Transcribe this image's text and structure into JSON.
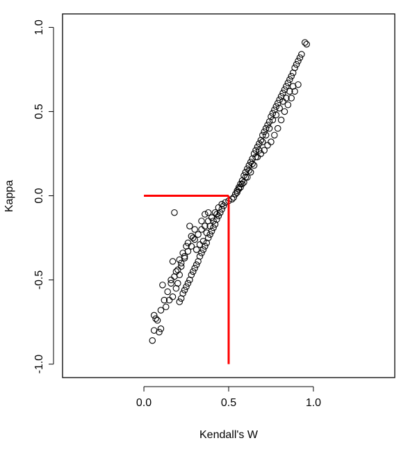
{
  "chart_data": {
    "type": "scatter",
    "title": "",
    "xlabel": "Kendall's W",
    "ylabel": "Kappa",
    "xlim": [
      -0.48,
      1.48
    ],
    "ylim": [
      -1.08,
      1.08
    ],
    "x_ticks": [
      0.0,
      0.5,
      1.0
    ],
    "x_tick_labels": [
      "0.0",
      "0.5",
      "1.0"
    ],
    "y_ticks": [
      -1.0,
      -0.5,
      0.0,
      0.5,
      1.0
    ],
    "y_tick_labels": [
      "-1.0",
      "-0.5",
      "0.0",
      "0.5",
      "1.0"
    ],
    "grid": false,
    "marker": "open-circle",
    "point_color": "#000000",
    "line_color": "#ff0000",
    "points": [
      [
        0.96,
        0.9
      ],
      [
        0.95,
        0.91
      ],
      [
        0.93,
        0.84
      ],
      [
        0.92,
        0.82
      ],
      [
        0.91,
        0.8
      ],
      [
        0.9,
        0.78
      ],
      [
        0.89,
        0.76
      ],
      [
        0.88,
        0.73
      ],
      [
        0.87,
        0.71
      ],
      [
        0.86,
        0.69
      ],
      [
        0.85,
        0.67
      ],
      [
        0.84,
        0.65
      ],
      [
        0.83,
        0.63
      ],
      [
        0.82,
        0.61
      ],
      [
        0.81,
        0.59
      ],
      [
        0.8,
        0.57
      ],
      [
        0.79,
        0.55
      ],
      [
        0.78,
        0.53
      ],
      [
        0.77,
        0.51
      ],
      [
        0.76,
        0.49
      ],
      [
        0.75,
        0.47
      ],
      [
        0.74,
        0.44
      ],
      [
        0.73,
        0.42
      ],
      [
        0.72,
        0.4
      ],
      [
        0.71,
        0.38
      ],
      [
        0.7,
        0.36
      ],
      [
        0.69,
        0.33
      ],
      [
        0.68,
        0.31
      ],
      [
        0.67,
        0.29
      ],
      [
        0.66,
        0.27
      ],
      [
        0.65,
        0.25
      ],
      [
        0.64,
        0.22
      ],
      [
        0.63,
        0.2
      ],
      [
        0.62,
        0.18
      ],
      [
        0.61,
        0.16
      ],
      [
        0.6,
        0.14
      ],
      [
        0.59,
        0.12
      ],
      [
        0.58,
        0.09
      ],
      [
        0.57,
        0.07
      ],
      [
        0.56,
        0.05
      ],
      [
        0.55,
        0.03
      ],
      [
        0.54,
        0.01
      ],
      [
        0.53,
        -0.01
      ],
      [
        0.52,
        -0.02
      ],
      [
        0.5,
        -0.03
      ],
      [
        0.88,
        0.65
      ],
      [
        0.86,
        0.62
      ],
      [
        0.84,
        0.58
      ],
      [
        0.82,
        0.56
      ],
      [
        0.8,
        0.52
      ],
      [
        0.78,
        0.48
      ],
      [
        0.76,
        0.45
      ],
      [
        0.74,
        0.4
      ],
      [
        0.72,
        0.36
      ],
      [
        0.7,
        0.32
      ],
      [
        0.68,
        0.27
      ],
      [
        0.66,
        0.23
      ],
      [
        0.64,
        0.19
      ],
      [
        0.62,
        0.15
      ],
      [
        0.6,
        0.11
      ],
      [
        0.58,
        0.07
      ],
      [
        0.56,
        0.04
      ],
      [
        0.67,
        0.23
      ],
      [
        0.69,
        0.25
      ],
      [
        0.71,
        0.27
      ],
      [
        0.73,
        0.3
      ],
      [
        0.75,
        0.32
      ],
      [
        0.77,
        0.36
      ],
      [
        0.79,
        0.4
      ],
      [
        0.81,
        0.45
      ],
      [
        0.83,
        0.5
      ],
      [
        0.85,
        0.54
      ],
      [
        0.87,
        0.58
      ],
      [
        0.89,
        0.62
      ],
      [
        0.91,
        0.66
      ],
      [
        0.61,
        0.11
      ],
      [
        0.63,
        0.14
      ],
      [
        0.65,
        0.18
      ],
      [
        0.59,
        0.08
      ],
      [
        0.57,
        0.05
      ],
      [
        0.55,
        0.02
      ],
      [
        0.48,
        -0.04
      ],
      [
        0.47,
        -0.06
      ],
      [
        0.46,
        -0.08
      ],
      [
        0.45,
        -0.1
      ],
      [
        0.44,
        -0.12
      ],
      [
        0.43,
        -0.14
      ],
      [
        0.42,
        -0.17
      ],
      [
        0.41,
        -0.19
      ],
      [
        0.4,
        -0.21
      ],
      [
        0.39,
        -0.23
      ],
      [
        0.38,
        -0.25
      ],
      [
        0.37,
        -0.28
      ],
      [
        0.36,
        -0.3
      ],
      [
        0.35,
        -0.32
      ],
      [
        0.34,
        -0.34
      ],
      [
        0.33,
        -0.36
      ],
      [
        0.32,
        -0.39
      ],
      [
        0.31,
        -0.41
      ],
      [
        0.3,
        -0.43
      ],
      [
        0.29,
        -0.45
      ],
      [
        0.28,
        -0.47
      ],
      [
        0.27,
        -0.5
      ],
      [
        0.26,
        -0.52
      ],
      [
        0.25,
        -0.54
      ],
      [
        0.24,
        -0.56
      ],
      [
        0.23,
        -0.58
      ],
      [
        0.22,
        -0.61
      ],
      [
        0.21,
        -0.63
      ],
      [
        0.46,
        -0.05
      ],
      [
        0.44,
        -0.07
      ],
      [
        0.42,
        -0.1
      ],
      [
        0.4,
        -0.13
      ],
      [
        0.38,
        -0.15
      ],
      [
        0.36,
        -0.18
      ],
      [
        0.34,
        -0.2
      ],
      [
        0.32,
        -0.23
      ],
      [
        0.3,
        -0.26
      ],
      [
        0.28,
        -0.3
      ],
      [
        0.26,
        -0.33
      ],
      [
        0.24,
        -0.37
      ],
      [
        0.22,
        -0.4
      ],
      [
        0.2,
        -0.44
      ],
      [
        0.18,
        -0.48
      ],
      [
        0.16,
        -0.52
      ],
      [
        0.14,
        -0.57
      ],
      [
        0.12,
        -0.62
      ],
      [
        0.1,
        -0.68
      ],
      [
        0.08,
        -0.74
      ],
      [
        0.06,
        -0.8
      ],
      [
        0.05,
        -0.86
      ],
      [
        0.18,
        -0.1
      ],
      [
        0.17,
        -0.39
      ],
      [
        0.16,
        -0.5
      ],
      [
        0.11,
        -0.53
      ],
      [
        0.06,
        -0.71
      ],
      [
        0.07,
        -0.73
      ],
      [
        0.1,
        -0.79
      ],
      [
        0.09,
        -0.81
      ],
      [
        0.27,
        -0.18
      ],
      [
        0.25,
        -0.3
      ],
      [
        0.24,
        -0.36
      ],
      [
        0.22,
        -0.42
      ],
      [
        0.21,
        -0.38
      ],
      [
        0.19,
        -0.45
      ],
      [
        0.2,
        -0.52
      ],
      [
        0.17,
        -0.6
      ],
      [
        0.29,
        -0.25
      ],
      [
        0.31,
        -0.32
      ],
      [
        0.33,
        -0.29
      ],
      [
        0.35,
        -0.27
      ],
      [
        0.37,
        -0.22
      ],
      [
        0.39,
        -0.18
      ],
      [
        0.41,
        -0.15
      ],
      [
        0.43,
        -0.11
      ],
      [
        0.36,
        -0.11
      ],
      [
        0.38,
        -0.1
      ],
      [
        0.34,
        -0.15
      ],
      [
        0.3,
        -0.2
      ],
      [
        0.28,
        -0.24
      ],
      [
        0.26,
        -0.28
      ],
      [
        0.23,
        -0.34
      ],
      [
        0.21,
        -0.47
      ],
      [
        0.19,
        -0.55
      ],
      [
        0.15,
        -0.62
      ],
      [
        0.13,
        -0.66
      ]
    ],
    "annotation_lines": [
      {
        "x": [
          0.0,
          0.5
        ],
        "y": [
          0.0,
          0.0
        ]
      },
      {
        "x": [
          0.5,
          0.5
        ],
        "y": [
          0.0,
          -1.0
        ]
      }
    ]
  }
}
